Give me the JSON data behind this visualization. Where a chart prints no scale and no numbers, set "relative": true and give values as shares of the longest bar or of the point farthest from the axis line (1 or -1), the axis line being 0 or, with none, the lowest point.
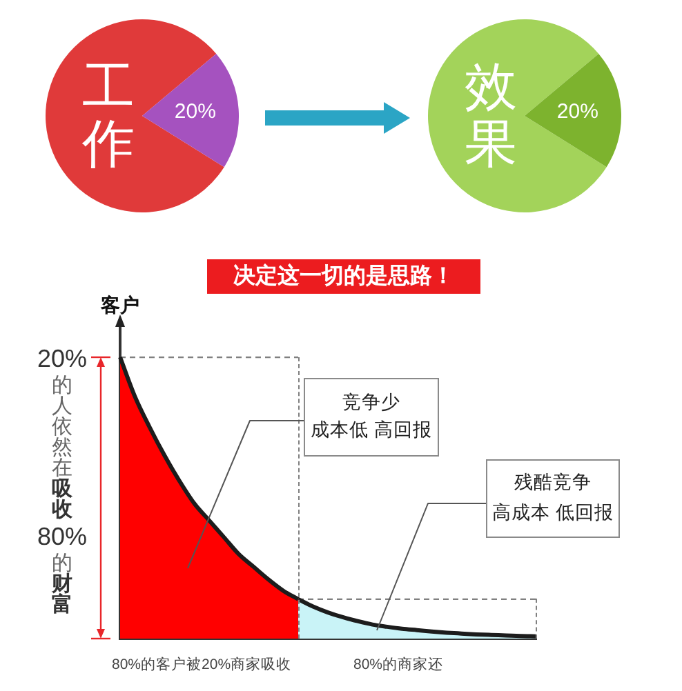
{
  "chart_data": [
    {
      "type": "pie",
      "categories": [
        "工作",
        null
      ],
      "values": [
        80,
        20
      ],
      "colors": [
        "#e03a3a",
        "#a552bf"
      ],
      "value_labels": [
        null,
        "20%"
      ]
    },
    {
      "type": "pie",
      "categories": [
        "效果",
        null
      ],
      "values": [
        80,
        20
      ],
      "colors": [
        "#a3d35a",
        "#7db32e"
      ],
      "value_labels": [
        null,
        "20%"
      ]
    },
    {
      "type": "area",
      "title": "决定这一切的是思路！",
      "ylabel": "客户",
      "relative": true,
      "categories": [
        null,
        null,
        null,
        null,
        null,
        null,
        null,
        null,
        null,
        null,
        null,
        null,
        null,
        null,
        null,
        null,
        null,
        null,
        null,
        null,
        null,
        null,
        null,
        null,
        null,
        null,
        null,
        null,
        null
      ],
      "series": [
        {
          "color": "#ff0000",
          "values": [
            1.0,
            0.86,
            0.75,
            0.65,
            0.56,
            0.48,
            0.42,
            0.36,
            0.3,
            0.255,
            0.21,
            0.17,
            0.14,
            null,
            null,
            null,
            null,
            null,
            null,
            null,
            null,
            null,
            null,
            null,
            null,
            null,
            null,
            null,
            null
          ]
        },
        {
          "color": "#c9f3f7",
          "values": [
            null,
            null,
            null,
            null,
            null,
            null,
            null,
            null,
            null,
            null,
            null,
            null,
            0.14,
            0.114,
            0.093,
            0.076,
            0.062,
            0.05,
            0.042,
            0.035,
            0.03,
            0.025,
            0.021,
            0.018,
            0.015,
            0.013,
            0.011,
            0.009,
            0.008
          ]
        },
        {
          "type": "line",
          "color": "#808080",
          "line_style": "dashed",
          "values": [
            1.0,
            1.0,
            1.0,
            1.0,
            1.0,
            1.0,
            1.0,
            1.0,
            1.0,
            1.0,
            1.0,
            1.0,
            1.0,
            null,
            null,
            null,
            null,
            null,
            null,
            null,
            null,
            null,
            null,
            null,
            null,
            null,
            null,
            null,
            null
          ]
        },
        {
          "type": "line",
          "color": "#808080",
          "line_style": "dashed",
          "values": [
            null,
            null,
            null,
            null,
            null,
            null,
            null,
            null,
            null,
            null,
            null,
            null,
            0.14,
            0.14,
            0.14,
            0.14,
            0.14,
            0.14,
            0.14,
            0.14,
            0.14,
            0.14,
            0.14,
            0.14,
            0.14,
            0.14,
            0.14,
            0.14,
            0.14
          ]
        }
      ],
      "annotations": [
        "20%的人依然在吸收80%的财富",
        "竞争少",
        "成本低 高回报",
        "残酷竞争",
        "高成本 低回报",
        "80%的客户被20%商家吸收",
        "80%的商家还"
      ]
    }
  ]
}
